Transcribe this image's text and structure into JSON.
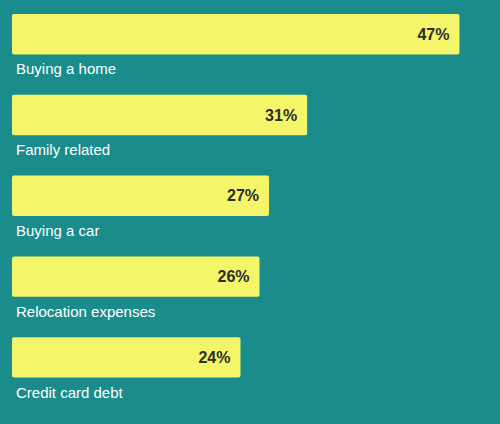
{
  "chart_data": {
    "type": "bar",
    "orientation": "horizontal",
    "categories": [
      "Buying a home",
      "Family related",
      "Buying a car",
      "Relocation expenses",
      "Credit card debt"
    ],
    "values": [
      47,
      31,
      27,
      26,
      24
    ],
    "value_labels": [
      "47%",
      "31%",
      "27%",
      "26%",
      "24%"
    ],
    "data_labels": true,
    "color": "#f5f56a",
    "xlim": [
      0,
      50
    ],
    "tick_labels": false
  }
}
